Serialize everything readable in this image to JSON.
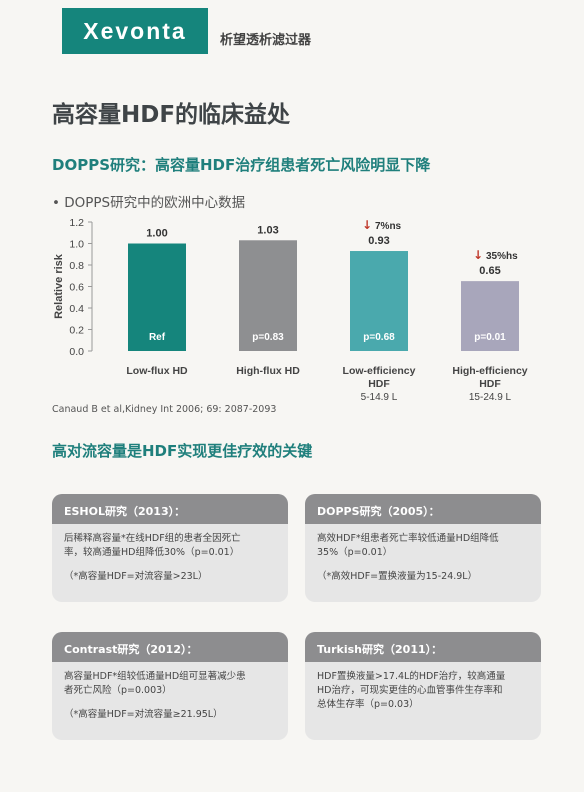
{
  "header": {
    "brand": "Xevonta",
    "subtitle": "析望透析滤过器"
  },
  "page_title": "高容量HDF的临床益处",
  "section1": {
    "title": "DOPPS研究：高容量HDF治疗组患者死亡风险明显下降",
    "bullet": "• DOPPS研究中的欧洲中心数据",
    "citation": "Canaud B et al,Kidney Int 2006; 69: 2087-2093"
  },
  "section2": {
    "title": "高对流容量是HDF实现更佳疗效的关键"
  },
  "chart_data": {
    "type": "bar",
    "ylabel": "Relative risk",
    "ylim": [
      0,
      1.2
    ],
    "yticks": [
      "0.0",
      "0.2",
      "0.4",
      "0.6",
      "0.8",
      "1.0",
      "1.2"
    ],
    "categories": [
      {
        "name": [
          "Low-flux HD"
        ],
        "sub": ""
      },
      {
        "name": [
          "High-flux HD"
        ],
        "sub": ""
      },
      {
        "name": [
          "Low-efficiency",
          "HDF"
        ],
        "sub": "5-14.9 L"
      },
      {
        "name": [
          "High-efficiency",
          "HDF"
        ],
        "sub": "15-24.9 L"
      }
    ],
    "values": [
      1.0,
      1.03,
      0.93,
      0.65
    ],
    "value_labels": [
      "1.00",
      "1.03",
      "0.93",
      "0.65"
    ],
    "inner_labels": [
      "Ref",
      "p=0.83",
      "p=0.68",
      "p=0.01"
    ],
    "reductions": [
      "",
      "",
      "7%ns",
      "35%hs"
    ],
    "colors": [
      "#15857c",
      "#8e8f91",
      "#4aa9ad",
      "#a8a6bb"
    ],
    "arrow_color": "#c0392b"
  },
  "cards": [
    {
      "title": "ESHOL研究（2013）：",
      "lines": [
        "后稀释高容量*在线HDF组的患者全因死亡",
        "率，较高通量HD组降低30%（p=0.01）"
      ],
      "note": "（*高容量HDF=对流容量>23L）"
    },
    {
      "title": "DOPPS研究（2005）：",
      "lines": [
        "高效HDF*组患者死亡率较低通量HD组降低",
        "35%（p=0.01）"
      ],
      "note": "（*高效HDF=置换液量为15-24.9L）"
    },
    {
      "title": "Contrast研究（2012）：",
      "lines": [
        "高容量HDF*组较低通量HD组可显著减少患",
        "者死亡风险（p=0.003）"
      ],
      "note": "（*高容量HDF=对流容量≥21.95L）"
    },
    {
      "title": "Turkish研究（2011）：",
      "lines": [
        "HDF置换液量>17.4L的HDF治疗，较高通量",
        "HD治疗，可现实更佳的心血管事件生存率和",
        "总体生存率（p=0.03）"
      ],
      "note": ""
    }
  ]
}
